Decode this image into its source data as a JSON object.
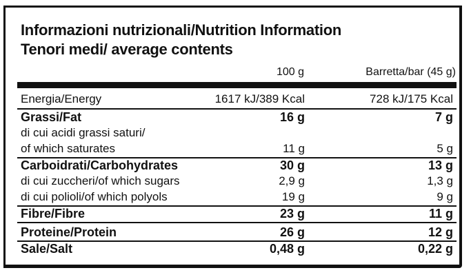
{
  "title_line1": "Informazioni nutrizionali/Nutrition Information",
  "title_line2": "Tenori medi/ average contents",
  "columns": {
    "per100": "100 g",
    "perbar": "Barretta/bar (45 g)"
  },
  "rows": [
    {
      "label": "Energia/Energy",
      "v100": "1617 kJ/389 Kcal",
      "vbar": "728 kJ/175 Kcal"
    },
    {
      "label": "Grassi/Fat",
      "v100": "16 g",
      "vbar": "7 g"
    },
    {
      "label": "di cui acidi grassi saturi/",
      "v100": "",
      "vbar": ""
    },
    {
      "label": "of which saturates",
      "v100": "11 g",
      "vbar": "5 g"
    },
    {
      "label": "Carboidrati/Carbohydrates",
      "v100": "30 g",
      "vbar": "13 g"
    },
    {
      "label": "di cui zuccheri/of which sugars",
      "v100": "2,9 g",
      "vbar": "1,3 g"
    },
    {
      "label": "di cui polioli/of which polyols",
      "v100": "19 g",
      "vbar": "9 g"
    },
    {
      "label": "Fibre/Fibre",
      "v100": "23 g",
      "vbar": "11 g"
    },
    {
      "label": "Proteine/Protein",
      "v100": "26 g",
      "vbar": "12 g"
    },
    {
      "label": "Sale/Salt",
      "v100": "0,48 g",
      "vbar": "0,22 g"
    }
  ]
}
